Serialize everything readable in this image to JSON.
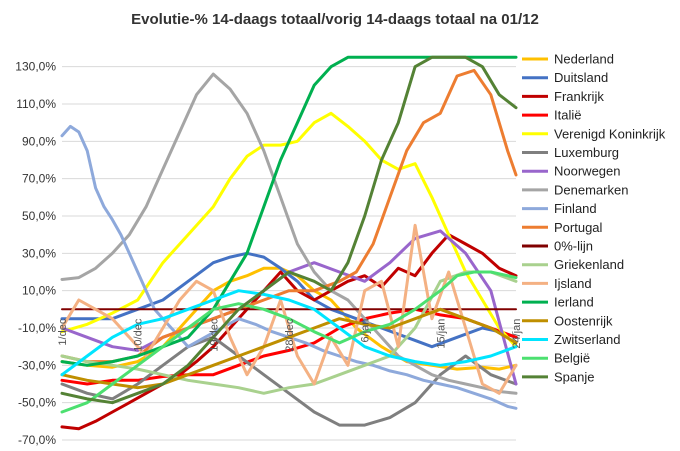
{
  "chart_data": {
    "type": "line",
    "title": "Evolutie-% 14-daags totaal/vorig 14-daags totaal na 01/12",
    "xlabel": "",
    "ylabel": "",
    "ylim": [
      -70,
      140
    ],
    "yticks": [
      "130,0%",
      "110,0%",
      "90,0%",
      "70,0%",
      "50,0%",
      "30,0%",
      "10,0%",
      "-10,0%",
      "-30,0%",
      "-50,0%",
      "-70,0%"
    ],
    "ytick_values": [
      130,
      110,
      90,
      70,
      50,
      30,
      10,
      -10,
      -30,
      -50,
      -70
    ],
    "x_range": [
      1,
      55
    ],
    "xtick_labels": [
      {
        "day": 1,
        "label": "1/dec"
      },
      {
        "day": 10,
        "label": "10/dec"
      },
      {
        "day": 19,
        "label": "19/dec"
      },
      {
        "day": 28,
        "label": "28/dec"
      },
      {
        "day": 37,
        "label": "6/jan"
      },
      {
        "day": 46,
        "label": "15/jan"
      },
      {
        "day": 55,
        "label": "24/jan"
      }
    ],
    "grid": true,
    "legend_position": "right",
    "series": [
      {
        "name": "Nederland",
        "color": "#FFC000",
        "x": [
          1,
          4,
          7,
          10,
          13,
          16,
          19,
          21,
          23,
          25,
          27,
          29,
          31,
          33,
          36,
          39,
          42,
          45,
          48,
          51,
          53,
          55
        ],
        "y": [
          -28,
          -30,
          -31,
          -28,
          -20,
          -5,
          10,
          15,
          18,
          22,
          22,
          18,
          10,
          5,
          -10,
          -20,
          -28,
          -30,
          -32,
          -31,
          -32,
          -30
        ]
      },
      {
        "name": "Duitsland",
        "color": "#4472C4",
        "x": [
          1,
          4,
          7,
          10,
          13,
          16,
          19,
          21,
          23,
          25,
          27,
          29,
          31,
          33,
          36,
          39,
          42,
          45,
          48,
          51,
          53,
          55
        ],
        "y": [
          -5,
          -5,
          -5,
          0,
          5,
          15,
          25,
          28,
          30,
          28,
          22,
          15,
          5,
          0,
          -5,
          -10,
          -15,
          -20,
          -15,
          -10,
          -12,
          -15
        ]
      },
      {
        "name": "Frankrijk",
        "color": "#C00000",
        "x": [
          1,
          3,
          5,
          7,
          9,
          11,
          13,
          15,
          17,
          19,
          21,
          23,
          25,
          27,
          29,
          31,
          33,
          35,
          37,
          39,
          41,
          43,
          45,
          47,
          49,
          51,
          53,
          55
        ],
        "y": [
          -63,
          -64,
          -60,
          -55,
          -50,
          -45,
          -40,
          -35,
          -28,
          -20,
          -10,
          0,
          10,
          20,
          10,
          5,
          10,
          15,
          18,
          12,
          22,
          18,
          30,
          40,
          35,
          30,
          22,
          18
        ]
      },
      {
        "name": "Italië",
        "color": "#FF0000",
        "x": [
          1,
          4,
          7,
          10,
          13,
          16,
          19,
          22,
          25,
          28,
          31,
          34,
          37,
          40,
          43,
          46,
          49,
          52,
          55
        ],
        "y": [
          -38,
          -40,
          -38,
          -38,
          -36,
          -35,
          -35,
          -30,
          -25,
          -22,
          -18,
          -10,
          -5,
          -2,
          0,
          -3,
          -5,
          -10,
          -15
        ]
      },
      {
        "name": "Verenigd Koninkrijk",
        "color": "#FFFF00",
        "x": [
          1,
          4,
          7,
          10,
          13,
          16,
          19,
          21,
          23,
          25,
          27,
          29,
          31,
          33,
          35,
          37,
          39,
          41,
          43,
          45,
          47,
          49,
          51,
          53,
          55
        ],
        "y": [
          -12,
          -8,
          -2,
          5,
          25,
          40,
          55,
          70,
          82,
          88,
          88,
          90,
          100,
          105,
          98,
          90,
          80,
          75,
          78,
          60,
          40,
          20,
          5,
          -10,
          -20
        ]
      },
      {
        "name": "Luxemburg",
        "color": "#7F7F7F",
        "x": [
          1,
          4,
          7,
          10,
          13,
          16,
          19,
          22,
          25,
          28,
          31,
          34,
          37,
          40,
          43,
          46,
          49,
          52,
          55
        ],
        "y": [
          -40,
          -45,
          -48,
          -40,
          -30,
          -20,
          -15,
          -25,
          -35,
          -45,
          -55,
          -62,
          -62,
          -58,
          -50,
          -35,
          -25,
          -35,
          -40
        ]
      },
      {
        "name": "Noorwegen",
        "color": "#9966CC",
        "x": [
          1,
          4,
          7,
          10,
          13,
          16,
          19,
          22,
          25,
          28,
          31,
          34,
          37,
          40,
          43,
          46,
          49,
          52,
          55
        ],
        "y": [
          -10,
          -15,
          -20,
          -22,
          -15,
          -10,
          -5,
          0,
          10,
          20,
          25,
          20,
          15,
          25,
          38,
          42,
          30,
          10,
          -40
        ]
      },
      {
        "name": "Denemarken",
        "color": "#A5A5A5",
        "x": [
          1,
          3,
          5,
          7,
          9,
          11,
          13,
          15,
          17,
          19,
          21,
          23,
          25,
          27,
          29,
          31,
          33,
          35,
          37,
          39,
          41,
          43,
          45,
          47,
          49,
          51,
          53,
          55
        ],
        "y": [
          16,
          17,
          22,
          30,
          40,
          55,
          75,
          95,
          115,
          126,
          118,
          105,
          85,
          60,
          35,
          20,
          10,
          5,
          -5,
          -15,
          -25,
          -30,
          -35,
          -38,
          -40,
          -42,
          -44,
          -45
        ]
      },
      {
        "name": "Finland",
        "color": "#8EA9DB",
        "x": [
          1,
          2,
          3,
          4,
          5,
          6,
          7,
          8,
          9,
          10,
          11,
          12,
          13,
          14,
          15,
          16,
          18,
          20,
          22,
          24,
          26,
          28,
          30,
          32,
          34,
          36,
          38,
          40,
          42,
          44,
          46,
          48,
          50,
          52,
          54,
          55
        ],
        "y": [
          93,
          98,
          95,
          85,
          65,
          55,
          48,
          40,
          30,
          20,
          10,
          0,
          -5,
          -10,
          -15,
          -20,
          -15,
          -10,
          -5,
          -8,
          -12,
          -15,
          -18,
          -22,
          -25,
          -28,
          -30,
          -33,
          -35,
          -38,
          -40,
          -42,
          -45,
          -48,
          -52,
          -53
        ]
      },
      {
        "name": "Portugal",
        "color": "#ED7D31",
        "x": [
          1,
          4,
          7,
          10,
          13,
          16,
          19,
          22,
          25,
          28,
          31,
          34,
          36,
          38,
          40,
          42,
          44,
          46,
          48,
          50,
          52,
          54,
          55
        ],
        "y": [
          -25,
          -28,
          -28,
          -25,
          -15,
          -10,
          -5,
          0,
          5,
          10,
          10,
          15,
          20,
          35,
          60,
          85,
          100,
          105,
          125,
          128,
          115,
          85,
          72
        ]
      },
      {
        "name": "0%-lijn",
        "color": "#800000",
        "x": [
          1,
          55
        ],
        "y": [
          0,
          0
        ]
      },
      {
        "name": "Griekenland",
        "color": "#A9D18E",
        "x": [
          1,
          4,
          7,
          10,
          13,
          16,
          19,
          22,
          25,
          28,
          31,
          34,
          37,
          40,
          43,
          46,
          49,
          52,
          55
        ],
        "y": [
          -25,
          -28,
          -30,
          -32,
          -35,
          -38,
          -40,
          -42,
          -45,
          -42,
          -40,
          -35,
          -30,
          -25,
          -10,
          15,
          20,
          20,
          15
        ]
      },
      {
        "name": "Ijsland",
        "color": "#F4B183",
        "x": [
          1,
          3,
          5,
          7,
          9,
          11,
          13,
          15,
          17,
          19,
          21,
          23,
          25,
          27,
          29,
          31,
          33,
          35,
          37,
          39,
          41,
          43,
          45,
          47,
          49,
          51,
          53,
          55
        ],
        "y": [
          -10,
          5,
          0,
          -5,
          -15,
          -25,
          -10,
          5,
          15,
          10,
          -15,
          -35,
          -20,
          5,
          -25,
          -40,
          -15,
          -30,
          10,
          15,
          -20,
          45,
          -5,
          20,
          -10,
          -40,
          -45,
          -30
        ]
      },
      {
        "name": "Ierland",
        "color": "#00B050",
        "x": [
          1,
          4,
          7,
          10,
          13,
          16,
          19,
          21,
          23,
          25,
          27,
          29,
          31,
          33,
          35,
          37,
          39,
          41,
          43,
          45,
          47,
          49,
          51,
          53,
          55
        ],
        "y": [
          -28,
          -30,
          -28,
          -25,
          -20,
          -15,
          0,
          15,
          30,
          55,
          80,
          100,
          120,
          130,
          135,
          135,
          135,
          135,
          135,
          135,
          135,
          135,
          135,
          135,
          135
        ]
      },
      {
        "name": "Oostenrijk",
        "color": "#BF8F00",
        "x": [
          1,
          4,
          7,
          10,
          13,
          16,
          19,
          22,
          25,
          28,
          31,
          34,
          37,
          40,
          43,
          46,
          49,
          52,
          55
        ],
        "y": [
          -35,
          -38,
          -40,
          -42,
          -40,
          -35,
          -30,
          -25,
          -20,
          -15,
          -10,
          -5,
          -8,
          -10,
          -5,
          0,
          -5,
          -10,
          -18
        ]
      },
      {
        "name": "Zwitserland",
        "color": "#00E5FF",
        "x": [
          1,
          4,
          7,
          10,
          13,
          16,
          19,
          22,
          25,
          28,
          31,
          34,
          37,
          40,
          43,
          46,
          49,
          52,
          55
        ],
        "y": [
          -35,
          -25,
          -15,
          -8,
          -5,
          0,
          5,
          10,
          8,
          5,
          0,
          -10,
          -20,
          -25,
          -28,
          -30,
          -28,
          -25,
          -20
        ]
      },
      {
        "name": "België",
        "color": "#4CE070",
        "x": [
          1,
          4,
          7,
          10,
          13,
          16,
          19,
          22,
          25,
          28,
          31,
          34,
          37,
          40,
          43,
          46,
          48,
          50,
          52,
          54,
          55
        ],
        "y": [
          -55,
          -50,
          -40,
          -30,
          -20,
          -10,
          0,
          3,
          0,
          -5,
          -12,
          -18,
          -12,
          -8,
          0,
          10,
          18,
          20,
          20,
          18,
          17
        ]
      },
      {
        "name": "Spanje",
        "color": "#548235",
        "x": [
          1,
          4,
          7,
          10,
          13,
          16,
          19,
          22,
          25,
          28,
          31,
          33,
          35,
          37,
          39,
          41,
          43,
          45,
          47,
          49,
          51,
          53,
          55
        ],
        "y": [
          -45,
          -48,
          -50,
          -45,
          -40,
          -30,
          -15,
          0,
          10,
          20,
          15,
          10,
          25,
          50,
          80,
          100,
          130,
          135,
          135,
          135,
          130,
          115,
          108
        ]
      }
    ]
  }
}
